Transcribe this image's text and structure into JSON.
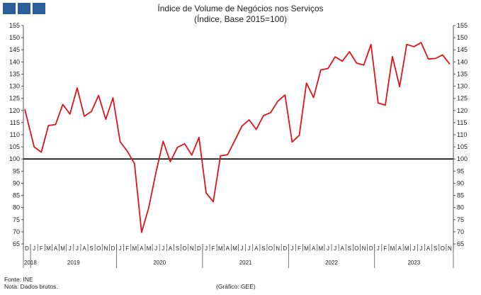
{
  "title_line1": "Índice de Volume de Negócios nos Serviços",
  "title_line2": "(Índice, Base 2015=100)",
  "footer": {
    "source": "Fonte: INE",
    "note": "Nota: Dados brutos.",
    "credit": "(Gráfico: GEE)"
  },
  "colors": {
    "series": "#e0131a",
    "reference": "#000000",
    "axis": "#555555",
    "logo": "#2b5f9c"
  },
  "chart_data": {
    "type": "line",
    "title": "Índice de Volume de Negócios nos Serviços",
    "subtitle": "(Índice, Base 2015=100)",
    "ylim": [
      65,
      155
    ],
    "yticks": [
      65,
      70,
      75,
      80,
      85,
      90,
      95,
      100,
      105,
      110,
      115,
      120,
      125,
      130,
      135,
      140,
      145,
      150,
      155
    ],
    "y_axis_both_sides": true,
    "reference_line": 100,
    "grid": false,
    "month_labels": [
      "D",
      "J",
      "F",
      "M",
      "A",
      "M",
      "J",
      "J",
      "A",
      "S",
      "O",
      "N",
      "D",
      "J",
      "F",
      "M",
      "A",
      "M",
      "J",
      "J",
      "A",
      "S",
      "O",
      "N",
      "D",
      "J",
      "F",
      "M",
      "A",
      "M",
      "J",
      "J",
      "A",
      "S",
      "O",
      "N",
      "D",
      "J",
      "F",
      "M",
      "A",
      "M",
      "J",
      "J",
      "A",
      "S",
      "O",
      "N",
      "D",
      "J",
      "F",
      "M",
      "A",
      "M",
      "J",
      "J",
      "A",
      "S",
      "O",
      "N"
    ],
    "years": [
      {
        "label": "2018",
        "start": 0,
        "end": 0
      },
      {
        "label": "2019",
        "start": 1,
        "end": 12
      },
      {
        "label": "2020",
        "start": 13,
        "end": 24
      },
      {
        "label": "2021",
        "start": 25,
        "end": 36
      },
      {
        "label": "2022",
        "start": 37,
        "end": 48
      },
      {
        "label": "2023",
        "start": 49,
        "end": 59
      }
    ],
    "series": [
      {
        "values": [
          120.5,
          105,
          102.8,
          113.8,
          114.2,
          122.5,
          118.5,
          129.3,
          117.6,
          119.6,
          126.2,
          116.3,
          125.2,
          107.1,
          103.2,
          98.2,
          69.8,
          80,
          94.5,
          107.3,
          98.9,
          104.8,
          106.3,
          101.6,
          108.9,
          86,
          82.4,
          101.3,
          101.8,
          107.6,
          113.6,
          116.1,
          112.2,
          117.9,
          119.1,
          123.8,
          126.4,
          107,
          109.8,
          131.3,
          125.3,
          136.7,
          137.3,
          142.1,
          140.3,
          144.2,
          139.5,
          138.7,
          147.2,
          123.1,
          122.2,
          142.2,
          129.8,
          147.2,
          146.3,
          148,
          141.2,
          141.4,
          142.9,
          139.1
        ]
      }
    ]
  }
}
